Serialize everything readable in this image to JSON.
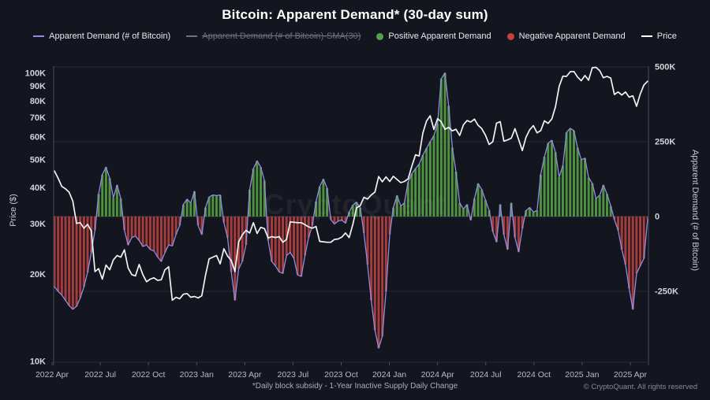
{
  "title": "Bitcoin: Apparent Demand* (30-day sum)",
  "watermark": "CryptoQuant",
  "footnote": "*Daily block subsidy - 1-Year Inactive Supply Daily Change",
  "copyright": "© CryptoQuant. All rights reserved",
  "legend": [
    {
      "label": "Apparent Demand (# of Bitcoin)",
      "marker": "line",
      "color": "#8d8fe4",
      "disabled": false
    },
    {
      "label": "Apparent Demand (# of Bitcoin)-SMA(30)",
      "marker": "line",
      "color": "#6e727e",
      "disabled": true
    },
    {
      "label": "Positive Apparent Demand",
      "marker": "dot",
      "color": "#57a04a",
      "disabled": false
    },
    {
      "label": "Negative Apparent Demand",
      "marker": "dot",
      "color": "#c2423c",
      "disabled": false
    },
    {
      "label": "Price",
      "marker": "line",
      "color": "#ffffff",
      "disabled": false
    }
  ],
  "axes": {
    "left": {
      "title": "Price ($)",
      "scale": "log",
      "tick_labels": [
        "100K",
        "90K",
        "80K",
        "70K",
        "60K",
        "50K",
        "40K",
        "30K",
        "20K",
        "10K"
      ],
      "tick_values_k": [
        100,
        90,
        80,
        70,
        60,
        50,
        40,
        30,
        20,
        10
      ]
    },
    "right": {
      "title": "Apparent Demand (# of Bitcoin)",
      "scale": "linear",
      "tick_labels": [
        "500K",
        "250K",
        "0",
        "-250K"
      ],
      "tick_values_k": [
        500,
        250,
        0,
        -250
      ]
    },
    "x": {
      "tick_labels": [
        "2022 Apr",
        "2022 Jul",
        "2022 Oct",
        "2023 Jan",
        "2023 Apr",
        "2023 Jul",
        "2023 Oct",
        "2024 Jan",
        "2024 Apr",
        "2024 Jul",
        "2024 Oct",
        "2025 Jan",
        "2025 Apr"
      ]
    }
  },
  "chart_data": {
    "type": "combo",
    "x_start": "2022-04",
    "x_end": "2025-04",
    "sampling": "weekly",
    "grid": "horizontal-faint",
    "legend_position": "top",
    "series": [
      {
        "name": "Apparent Demand (# of Bitcoin)",
        "type": "line+bar",
        "axis": "right",
        "units": "thousand BTC",
        "line_color": "#928ee0",
        "bar_color_positive": "#4e9140",
        "bar_color_negative": "#a63c3c",
        "values": [
          -235,
          -250,
          -262,
          -280,
          -298,
          -310,
          -300,
          -272,
          -235,
          -187,
          -120,
          -45,
          75,
          140,
          165,
          128,
          62,
          105,
          60,
          -45,
          -95,
          -70,
          -65,
          -80,
          -100,
          -95,
          -110,
          -115,
          -135,
          -150,
          -120,
          -95,
          -98,
          -60,
          -30,
          40,
          58,
          45,
          84,
          -30,
          -60,
          30,
          65,
          72,
          70,
          72,
          -20,
          -70,
          -185,
          -280,
          -175,
          -150,
          -95,
          90,
          160,
          186,
          165,
          120,
          -80,
          -150,
          -165,
          -185,
          -190,
          -130,
          -120,
          -140,
          -195,
          -200,
          -130,
          -70,
          -30,
          50,
          100,
          125,
          95,
          -10,
          -25,
          -15,
          -12,
          -22,
          15,
          38,
          48,
          30,
          -55,
          -160,
          -280,
          -380,
          -440,
          -400,
          -250,
          -60,
          30,
          70,
          35,
          45,
          115,
          143,
          160,
          175,
          205,
          228,
          250,
          270,
          310,
          460,
          480,
          370,
          230,
          150,
          45,
          25,
          40,
          -12,
          60,
          110,
          90,
          55,
          20,
          -50,
          -85,
          40,
          -60,
          -110,
          45,
          -70,
          -118,
          -40,
          20,
          30,
          15,
          20,
          140,
          200,
          245,
          255,
          215,
          132,
          170,
          281,
          295,
          287,
          230,
          190,
          195,
          130,
          111,
          60,
          71,
          105,
          75,
          35,
          -10,
          -45,
          -110,
          -160,
          -240,
          -310,
          -190,
          -165,
          -140,
          -10
        ]
      },
      {
        "name": "Price",
        "type": "line",
        "axis": "left",
        "units": "thousand USD",
        "line_color": "#f2f3f5",
        "values": [
          45.8,
          43.2,
          40.5,
          39.7,
          38.6,
          36.0,
          30.1,
          30.3,
          29.0,
          29.9,
          28.4,
          20.5,
          21.0,
          19.3,
          21.6,
          20.8,
          22.5,
          23.3,
          23.0,
          24.4,
          21.1,
          20.0,
          19.8,
          21.7,
          20.0,
          18.9,
          19.3,
          19.5,
          19.1,
          19.2,
          20.8,
          21.3,
          16.3,
          16.7,
          16.5,
          17.1,
          17.2,
          16.7,
          16.8,
          16.6,
          16.9,
          19.9,
          22.7,
          23.0,
          23.3,
          21.8,
          24.6,
          23.2,
          22.4,
          20.5,
          26.0,
          27.5,
          28.5,
          27.9,
          30.3,
          27.8,
          29.2,
          28.9,
          26.8,
          27.1,
          26.9,
          27.1,
          25.9,
          26.5,
          30.5,
          30.4,
          30.3,
          30.3,
          29.8,
          29.3,
          29.0,
          29.4,
          26.1,
          26.0,
          25.9,
          25.9,
          26.5,
          26.6,
          27.0,
          27.9,
          26.9,
          29.9,
          34.1,
          34.7,
          37.1,
          36.6,
          37.8,
          38.7,
          43.8,
          42.0,
          43.7,
          42.1,
          43.9,
          42.8,
          41.7,
          42.1,
          43.0,
          47.5,
          52.1,
          51.6,
          62.0,
          68.3,
          71.2,
          63.8,
          69.6,
          67.8,
          63.9,
          64.9,
          63.1,
          63.9,
          60.8,
          66.2,
          68.5,
          67.7,
          69.3,
          66.0,
          64.2,
          60.9,
          56.6,
          57.9,
          67.1,
          67.9,
          58.1,
          58.7,
          59.5,
          64.2,
          58.9,
          53.9,
          60.0,
          63.6,
          65.8,
          62.1,
          63.2,
          68.4,
          67.0,
          69.4,
          76.5,
          90.0,
          97.7,
          97.5,
          101.2,
          101.4,
          97.0,
          94.2,
          98.2,
          94.6,
          104.5,
          104.8,
          102.1,
          96.5,
          97.5,
          96.2,
          84.4,
          86.1,
          84.0,
          86.1,
          82.6,
          83.5,
          76.8,
          84.6,
          91.0,
          93.8
        ]
      }
    ]
  }
}
